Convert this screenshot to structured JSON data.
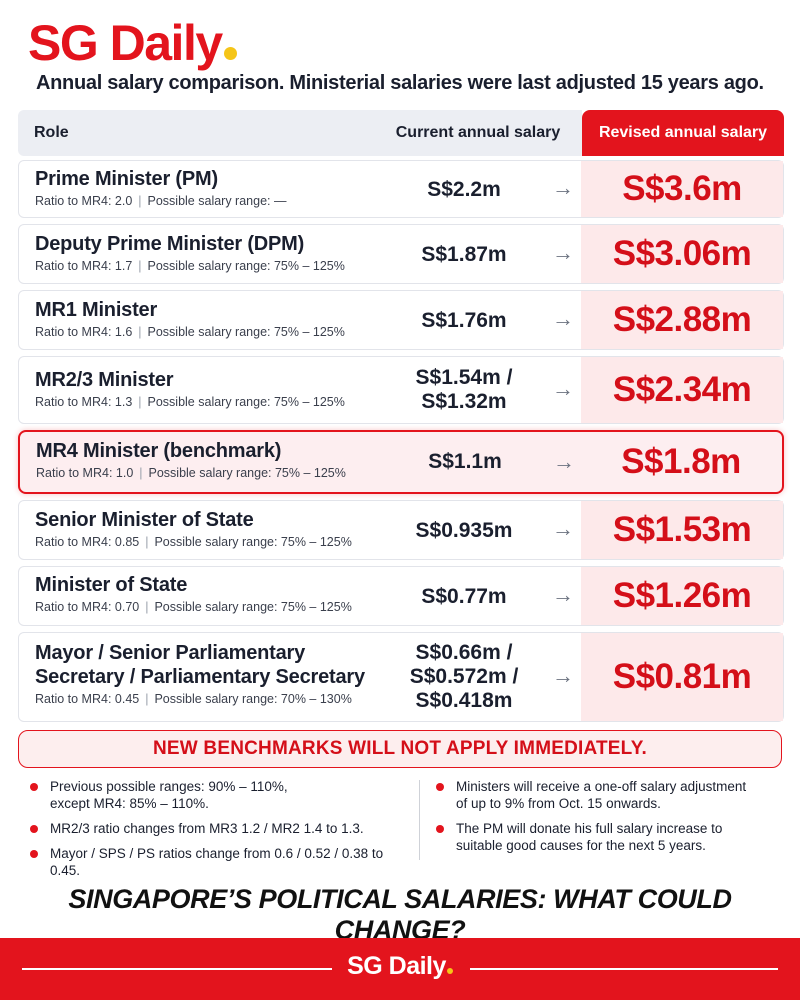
{
  "brand": {
    "name": "SG Daily",
    "accent_color": "#e3141d",
    "dot_color": "#f5c518"
  },
  "subtitle": "Annual salary comparison. Ministerial salaries were last adjusted 15 years ago.",
  "table": {
    "headers": {
      "role": "Role",
      "current": "Current annual salary",
      "revised": "Revised annual salary"
    },
    "meta_labels": {
      "ratio": "Ratio to MR4:",
      "range": "Possible salary range:"
    },
    "arrow": "→",
    "rows": [
      {
        "role": "Prime Minister (PM)",
        "ratio": "2.0",
        "range": "—",
        "current": "S$2.2m",
        "revised": "S$3.6m"
      },
      {
        "role": "Deputy Prime Minister (DPM)",
        "ratio": "1.7",
        "range": "75% – 125%",
        "current": "S$1.87m",
        "revised": "S$3.06m"
      },
      {
        "role": "MR1 Minister",
        "ratio": "1.6",
        "range": "75% – 125%",
        "current": "S$1.76m",
        "revised": "S$2.88m"
      },
      {
        "role": "MR2/3 Minister",
        "ratio": "1.3",
        "range": "75% – 125%",
        "current_lines": [
          "S$1.54m /",
          "S$1.32m"
        ],
        "revised": "S$2.34m"
      },
      {
        "role": "MR4 Minister (benchmark)",
        "ratio": "1.0",
        "range": "75% – 125%",
        "current": "S$1.1m",
        "revised": "S$1.8m",
        "highlighted": true
      },
      {
        "role": "Senior Minister of State",
        "ratio": "0.85",
        "range": "75% – 125%",
        "current": "S$0.935m",
        "revised": "S$1.53m"
      },
      {
        "role": "Minister of State",
        "ratio": "0.70",
        "range": "75% – 125%",
        "current": "S$0.77m",
        "revised": "S$1.26m"
      },
      {
        "role_lines": [
          "Mayor / Senior Parliamentary",
          "Secretary / Parliamentary Secretary"
        ],
        "ratio": "0.45",
        "range": "70% – 130%",
        "current_lines": [
          "S$0.66m /",
          "S$0.572m /",
          "S$0.418m"
        ],
        "revised": "S$0.81m"
      }
    ]
  },
  "banner": "NEW BENCHMARKS WILL NOT APPLY IMMEDIATELY.",
  "notes_left": [
    [
      "Previous possible ranges: 90% – 110%,",
      "except MR4: 85% – 110%."
    ],
    [
      "MR2/3 ratio changes from MR3 1.2 / MR2 1.4 to 1.3."
    ],
    [
      "Mayor / SPS / PS ratios change from 0.6 / 0.52 / 0.38 to 0.45."
    ]
  ],
  "notes_right": [
    [
      "Ministers will receive a one-off salary adjustment",
      "of up to 9% from Oct. 15 onwards."
    ],
    [
      "The PM will donate his full salary increase to",
      "suitable good causes for the next 5 years."
    ]
  ],
  "headline": "SINGAPORE’S POLITICAL SALARIES: WHAT COULD CHANGE?",
  "footer": {
    "brand": "SG Daily"
  }
}
